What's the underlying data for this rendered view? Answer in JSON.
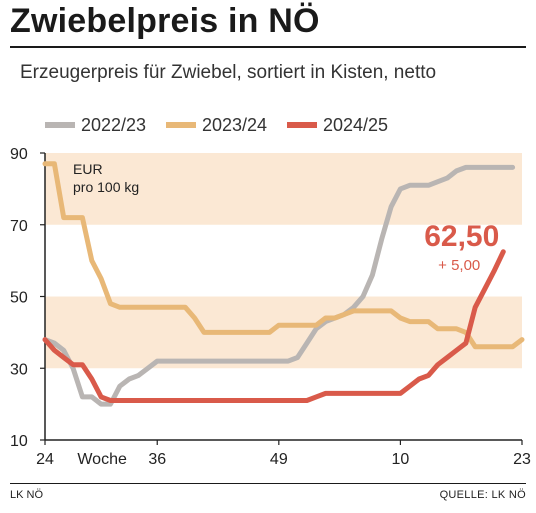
{
  "header": {
    "title": "Zwiebelpreis in NÖ",
    "subtitle": "Erzeugerpreis für Zwiebel, sortiert in Kisten, netto"
  },
  "footer": {
    "source_left": "LK NÖ",
    "source_right": "QUELLE: LK NÖ"
  },
  "colors": {
    "band": "#fbe8d4",
    "series_2022": "#b9b5b3",
    "series_2023": "#e8b877",
    "series_2024": "#d95a4a"
  },
  "chart_data": {
    "type": "line",
    "title": "Zwiebelpreis in NÖ",
    "subtitle": "Erzeugerpreis für Zwiebel, sortiert in Kisten, netto",
    "unit_label_line1": "EUR",
    "unit_label_line2": "pro 100 kg",
    "xlabel": "Woche",
    "ylim": [
      10,
      90
    ],
    "yticks": [
      10,
      30,
      50,
      70,
      90
    ],
    "x_axis_note": "x = weeks elapsed since marketing-year week 24 (0 = week 24)",
    "xlim": [
      0,
      51
    ],
    "xticks": [
      {
        "x": 0,
        "label": "24"
      },
      {
        "x": 12,
        "label": "36"
      },
      {
        "x": 25,
        "label": "49"
      },
      {
        "x": 38,
        "label": "10"
      },
      {
        "x": 51,
        "label": "23"
      }
    ],
    "xlabel_pos": 6,
    "grid": false,
    "shaded_bands": [
      [
        30,
        50
      ],
      [
        70,
        90
      ]
    ],
    "legend": {
      "position": "top",
      "entries": [
        "2022/23",
        "2023/24",
        "2024/25"
      ]
    },
    "series": [
      {
        "name": "2022/23",
        "color": "#b9b5b3",
        "points": [
          [
            0,
            38
          ],
          [
            1,
            37
          ],
          [
            2,
            35
          ],
          [
            3,
            30
          ],
          [
            4,
            22
          ],
          [
            5,
            22
          ],
          [
            6,
            20
          ],
          [
            7,
            20
          ],
          [
            8,
            25
          ],
          [
            9,
            27
          ],
          [
            10,
            28
          ],
          [
            11,
            30
          ],
          [
            12,
            32
          ],
          [
            13,
            32
          ],
          [
            14,
            32
          ],
          [
            16,
            32
          ],
          [
            18,
            32
          ],
          [
            20,
            32
          ],
          [
            22,
            32
          ],
          [
            24,
            32
          ],
          [
            26,
            32
          ],
          [
            27,
            33
          ],
          [
            28,
            37
          ],
          [
            29,
            41
          ],
          [
            30,
            43
          ],
          [
            31,
            44
          ],
          [
            32,
            45
          ],
          [
            33,
            47
          ],
          [
            34,
            50
          ],
          [
            35,
            56
          ],
          [
            36,
            66
          ],
          [
            37,
            75
          ],
          [
            38,
            80
          ],
          [
            39,
            81
          ],
          [
            40,
            81
          ],
          [
            41,
            81
          ],
          [
            42,
            82
          ],
          [
            43,
            83
          ],
          [
            44,
            85
          ],
          [
            45,
            86
          ],
          [
            46,
            86
          ],
          [
            47,
            86
          ],
          [
            48,
            86
          ],
          [
            49,
            86
          ],
          [
            50,
            86
          ]
        ]
      },
      {
        "name": "2023/24",
        "color": "#e8b877",
        "points": [
          [
            0,
            87
          ],
          [
            1,
            87
          ],
          [
            2,
            72
          ],
          [
            3,
            72
          ],
          [
            4,
            72
          ],
          [
            5,
            60
          ],
          [
            6,
            55
          ],
          [
            7,
            48
          ],
          [
            8,
            47
          ],
          [
            9,
            47
          ],
          [
            10,
            47
          ],
          [
            11,
            47
          ],
          [
            12,
            47
          ],
          [
            13,
            47
          ],
          [
            14,
            47
          ],
          [
            15,
            47
          ],
          [
            16,
            44
          ],
          [
            17,
            40
          ],
          [
            18,
            40
          ],
          [
            19,
            40
          ],
          [
            20,
            40
          ],
          [
            21,
            40
          ],
          [
            22,
            40
          ],
          [
            23,
            40
          ],
          [
            24,
            40
          ],
          [
            25,
            42
          ],
          [
            26,
            42
          ],
          [
            27,
            42
          ],
          [
            28,
            42
          ],
          [
            29,
            42
          ],
          [
            30,
            44
          ],
          [
            31,
            44
          ],
          [
            32,
            45
          ],
          [
            33,
            46
          ],
          [
            34,
            46
          ],
          [
            35,
            46
          ],
          [
            36,
            46
          ],
          [
            37,
            46
          ],
          [
            38,
            44
          ],
          [
            39,
            43
          ],
          [
            40,
            43
          ],
          [
            41,
            43
          ],
          [
            42,
            41
          ],
          [
            43,
            41
          ],
          [
            44,
            41
          ],
          [
            45,
            40
          ],
          [
            46,
            36
          ],
          [
            47,
            36
          ],
          [
            48,
            36
          ],
          [
            49,
            36
          ],
          [
            50,
            36
          ],
          [
            51,
            38
          ]
        ]
      },
      {
        "name": "2024/25",
        "color": "#d95a4a",
        "points": [
          [
            0,
            38
          ],
          [
            1,
            35
          ],
          [
            2,
            33
          ],
          [
            3,
            31
          ],
          [
            4,
            31
          ],
          [
            5,
            27
          ],
          [
            6,
            22
          ],
          [
            7,
            21
          ],
          [
            8,
            21
          ],
          [
            10,
            21
          ],
          [
            12,
            21
          ],
          [
            14,
            21
          ],
          [
            16,
            21
          ],
          [
            18,
            21
          ],
          [
            20,
            21
          ],
          [
            22,
            21
          ],
          [
            24,
            21
          ],
          [
            26,
            21
          ],
          [
            28,
            21
          ],
          [
            29,
            22
          ],
          [
            30,
            23
          ],
          [
            32,
            23
          ],
          [
            34,
            23
          ],
          [
            36,
            23
          ],
          [
            37,
            23
          ],
          [
            38,
            23
          ],
          [
            39,
            25
          ],
          [
            40,
            27
          ],
          [
            41,
            28
          ],
          [
            42,
            31
          ],
          [
            43,
            33
          ],
          [
            44,
            35
          ],
          [
            45,
            37
          ],
          [
            46,
            47
          ],
          [
            47,
            52
          ],
          [
            48,
            57
          ],
          [
            49,
            62.5
          ]
        ]
      }
    ],
    "annotations": [
      {
        "text": "62,50",
        "sub": "+ 5,00",
        "series": "2024/25"
      }
    ]
  }
}
